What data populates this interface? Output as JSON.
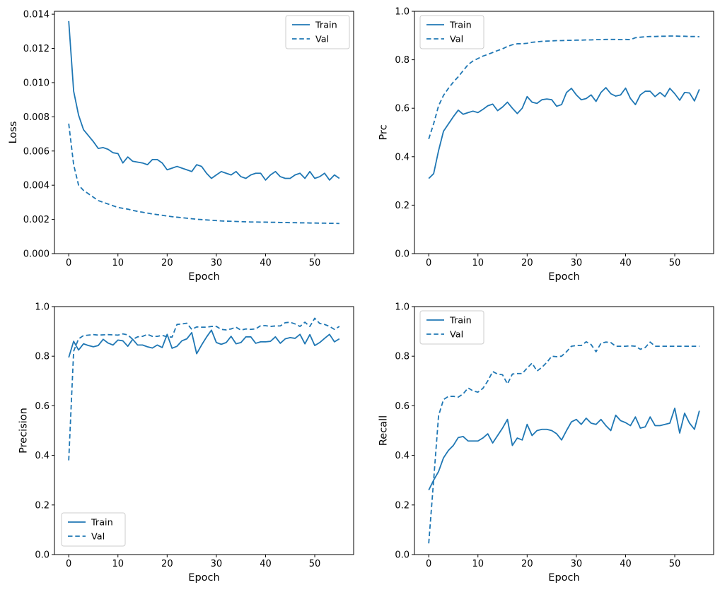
{
  "figure": {
    "background": "#ffffff",
    "line_color": "#1f77b4",
    "spine_color": "#000000",
    "legend_border_color": "#cccccc",
    "legend_labels": [
      "Train",
      "Val"
    ]
  },
  "epochs": [
    0,
    1,
    2,
    3,
    4,
    5,
    6,
    7,
    8,
    9,
    10,
    11,
    12,
    13,
    14,
    15,
    16,
    17,
    18,
    19,
    20,
    21,
    22,
    23,
    24,
    25,
    26,
    27,
    28,
    29,
    30,
    31,
    32,
    33,
    34,
    35,
    36,
    37,
    38,
    39,
    40,
    41,
    42,
    43,
    44,
    45,
    46,
    47,
    48,
    49,
    50,
    51,
    52,
    53,
    54,
    55
  ],
  "chart_data": [
    {
      "type": "line",
      "title": "",
      "xlabel": "Epoch",
      "ylabel": "Loss",
      "xlim": [
        -2.9,
        57.9
      ],
      "ylim": [
        0,
        0.01417
      ],
      "xticks": [
        0,
        10,
        20,
        30,
        40,
        50
      ],
      "xtick_labels": [
        "0",
        "10",
        "20",
        "30",
        "40",
        "50"
      ],
      "yticks": [
        0.0,
        0.002,
        0.004,
        0.006,
        0.008,
        0.01,
        0.012,
        0.014
      ],
      "ytick_labels": [
        "0.000",
        "0.002",
        "0.004",
        "0.006",
        "0.008",
        "0.010",
        "0.012",
        "0.014"
      ],
      "grid": false,
      "legend_loc": "upper-right",
      "series": [
        {
          "name": "Train",
          "style": "solid",
          "values": [
            0.0136,
            0.0095,
            0.0081,
            0.00725,
            0.0069,
            0.00655,
            0.00615,
            0.0062,
            0.0061,
            0.0059,
            0.00585,
            0.0053,
            0.00565,
            0.0054,
            0.00535,
            0.0053,
            0.0052,
            0.0055,
            0.0055,
            0.0053,
            0.0049,
            0.005,
            0.0051,
            0.005,
            0.0049,
            0.0048,
            0.0052,
            0.0051,
            0.0047,
            0.0044,
            0.0046,
            0.0048,
            0.0047,
            0.0046,
            0.0048,
            0.0045,
            0.0044,
            0.0046,
            0.0047,
            0.0047,
            0.0043,
            0.0046,
            0.0048,
            0.0045,
            0.0044,
            0.0044,
            0.0046,
            0.0047,
            0.0044,
            0.0048,
            0.0044,
            0.0045,
            0.0047,
            0.0043,
            0.0046,
            0.0044
          ]
        },
        {
          "name": "Val",
          "style": "dashed",
          "values": [
            0.0076,
            0.0052,
            0.004,
            0.0037,
            0.0035,
            0.0033,
            0.0031,
            0.003,
            0.0029,
            0.0028,
            0.0027,
            0.00265,
            0.0026,
            0.00253,
            0.00247,
            0.00242,
            0.00237,
            0.00232,
            0.00228,
            0.00224,
            0.0022,
            0.00216,
            0.00213,
            0.0021,
            0.00207,
            0.00204,
            0.00201,
            0.00199,
            0.00197,
            0.00195,
            0.00193,
            0.00191,
            0.0019,
            0.00189,
            0.00188,
            0.00187,
            0.00186,
            0.00185,
            0.00185,
            0.00184,
            0.00184,
            0.00183,
            0.00183,
            0.00182,
            0.00182,
            0.00181,
            0.00181,
            0.0018,
            0.0018,
            0.00179,
            0.00179,
            0.00178,
            0.00178,
            0.00177,
            0.00177,
            0.00176
          ]
        }
      ]
    },
    {
      "type": "line",
      "title": "",
      "xlabel": "Epoch",
      "ylabel": "Prc",
      "xlim": [
        -2.9,
        57.9
      ],
      "ylim": [
        0,
        1.0
      ],
      "xticks": [
        0,
        10,
        20,
        30,
        40,
        50
      ],
      "xtick_labels": [
        "0",
        "10",
        "20",
        "30",
        "40",
        "50"
      ],
      "yticks": [
        0.0,
        0.2,
        0.4,
        0.6,
        0.8,
        1.0
      ],
      "ytick_labels": [
        "0.0",
        "0.2",
        "0.4",
        "0.6",
        "0.8",
        "1.0"
      ],
      "grid": false,
      "legend_loc": "upper-left",
      "series": [
        {
          "name": "Train",
          "style": "solid",
          "values": [
            0.31,
            0.33,
            0.425,
            0.505,
            0.535,
            0.565,
            0.592,
            0.575,
            0.582,
            0.588,
            0.582,
            0.595,
            0.61,
            0.617,
            0.59,
            0.605,
            0.625,
            0.6,
            0.578,
            0.6,
            0.648,
            0.625,
            0.62,
            0.635,
            0.638,
            0.635,
            0.608,
            0.615,
            0.665,
            0.682,
            0.655,
            0.635,
            0.64,
            0.655,
            0.628,
            0.665,
            0.685,
            0.66,
            0.65,
            0.655,
            0.683,
            0.64,
            0.615,
            0.655,
            0.67,
            0.67,
            0.648,
            0.665,
            0.648,
            0.682,
            0.66,
            0.633,
            0.665,
            0.663,
            0.63,
            0.678
          ]
        },
        {
          "name": "Val",
          "style": "dashed",
          "values": [
            0.473,
            0.536,
            0.61,
            0.653,
            0.682,
            0.708,
            0.73,
            0.755,
            0.78,
            0.795,
            0.805,
            0.815,
            0.822,
            0.83,
            0.838,
            0.845,
            0.855,
            0.862,
            0.866,
            0.866,
            0.868,
            0.872,
            0.874,
            0.876,
            0.877,
            0.878,
            0.879,
            0.879,
            0.88,
            0.88,
            0.881,
            0.881,
            0.882,
            0.882,
            0.883,
            0.883,
            0.884,
            0.884,
            0.884,
            0.883,
            0.884,
            0.883,
            0.891,
            0.893,
            0.895,
            0.896,
            0.896,
            0.897,
            0.897,
            0.898,
            0.898,
            0.897,
            0.897,
            0.896,
            0.896,
            0.895
          ]
        }
      ]
    },
    {
      "type": "line",
      "title": "",
      "xlabel": "Epoch",
      "ylabel": "Precision",
      "xlim": [
        -2.9,
        57.9
      ],
      "ylim": [
        0,
        1.0
      ],
      "xticks": [
        0,
        10,
        20,
        30,
        40,
        50
      ],
      "xtick_labels": [
        "0",
        "10",
        "20",
        "30",
        "40",
        "50"
      ],
      "yticks": [
        0.0,
        0.2,
        0.4,
        0.6,
        0.8,
        1.0
      ],
      "ytick_labels": [
        "0.0",
        "0.2",
        "0.4",
        "0.6",
        "0.8",
        "1.0"
      ],
      "grid": false,
      "legend_loc": "lower-left",
      "series": [
        {
          "name": "Train",
          "style": "solid",
          "values": [
            0.795,
            0.86,
            0.825,
            0.85,
            0.843,
            0.838,
            0.843,
            0.868,
            0.853,
            0.845,
            0.865,
            0.862,
            0.84,
            0.868,
            0.845,
            0.845,
            0.838,
            0.833,
            0.845,
            0.835,
            0.888,
            0.832,
            0.84,
            0.862,
            0.87,
            0.895,
            0.81,
            0.845,
            0.877,
            0.905,
            0.855,
            0.848,
            0.855,
            0.88,
            0.85,
            0.855,
            0.878,
            0.878,
            0.852,
            0.858,
            0.858,
            0.86,
            0.878,
            0.852,
            0.87,
            0.875,
            0.872,
            0.888,
            0.85,
            0.887,
            0.843,
            0.855,
            0.872,
            0.888,
            0.858,
            0.87
          ]
        },
        {
          "name": "Val",
          "style": "dashed",
          "values": [
            0.38,
            0.82,
            0.87,
            0.883,
            0.885,
            0.887,
            0.885,
            0.886,
            0.887,
            0.886,
            0.885,
            0.89,
            0.886,
            0.868,
            0.878,
            0.88,
            0.888,
            0.88,
            0.88,
            0.884,
            0.878,
            0.877,
            0.928,
            0.93,
            0.933,
            0.908,
            0.918,
            0.917,
            0.917,
            0.92,
            0.92,
            0.908,
            0.906,
            0.91,
            0.917,
            0.905,
            0.91,
            0.908,
            0.91,
            0.923,
            0.923,
            0.92,
            0.922,
            0.922,
            0.935,
            0.937,
            0.93,
            0.92,
            0.937,
            0.92,
            0.953,
            0.932,
            0.928,
            0.92,
            0.908,
            0.92
          ]
        }
      ]
    },
    {
      "type": "line",
      "title": "",
      "xlabel": "Epoch",
      "ylabel": "Recall",
      "xlim": [
        -2.9,
        57.9
      ],
      "ylim": [
        0,
        1.0
      ],
      "xticks": [
        0,
        10,
        20,
        30,
        40,
        50
      ],
      "xtick_labels": [
        "0",
        "10",
        "20",
        "30",
        "40",
        "50"
      ],
      "yticks": [
        0.0,
        0.2,
        0.4,
        0.6,
        0.8,
        1.0
      ],
      "ytick_labels": [
        "0.0",
        "0.2",
        "0.4",
        "0.6",
        "0.8",
        "1.0"
      ],
      "grid": false,
      "legend_loc": "upper-left",
      "series": [
        {
          "name": "Train",
          "style": "solid",
          "values": [
            0.26,
            0.3,
            0.335,
            0.39,
            0.42,
            0.44,
            0.472,
            0.476,
            0.458,
            0.458,
            0.458,
            0.47,
            0.487,
            0.45,
            0.48,
            0.51,
            0.545,
            0.44,
            0.47,
            0.462,
            0.525,
            0.48,
            0.5,
            0.505,
            0.505,
            0.5,
            0.487,
            0.462,
            0.5,
            0.535,
            0.545,
            0.525,
            0.55,
            0.53,
            0.525,
            0.545,
            0.52,
            0.5,
            0.562,
            0.54,
            0.532,
            0.52,
            0.555,
            0.51,
            0.515,
            0.555,
            0.52,
            0.52,
            0.525,
            0.53,
            0.59,
            0.49,
            0.57,
            0.53,
            0.505,
            0.58
          ]
        },
        {
          "name": "Val",
          "style": "dashed",
          "values": [
            0.045,
            0.3,
            0.56,
            0.625,
            0.638,
            0.638,
            0.635,
            0.648,
            0.672,
            0.66,
            0.655,
            0.67,
            0.7,
            0.738,
            0.728,
            0.725,
            0.688,
            0.728,
            0.73,
            0.73,
            0.752,
            0.772,
            0.74,
            0.755,
            0.775,
            0.8,
            0.798,
            0.8,
            0.818,
            0.84,
            0.843,
            0.843,
            0.858,
            0.847,
            0.818,
            0.852,
            0.857,
            0.855,
            0.84,
            0.84,
            0.84,
            0.842,
            0.84,
            0.828,
            0.835,
            0.857,
            0.84,
            0.84,
            0.84,
            0.84,
            0.84,
            0.84,
            0.84,
            0.84,
            0.84,
            0.84
          ]
        }
      ]
    }
  ]
}
